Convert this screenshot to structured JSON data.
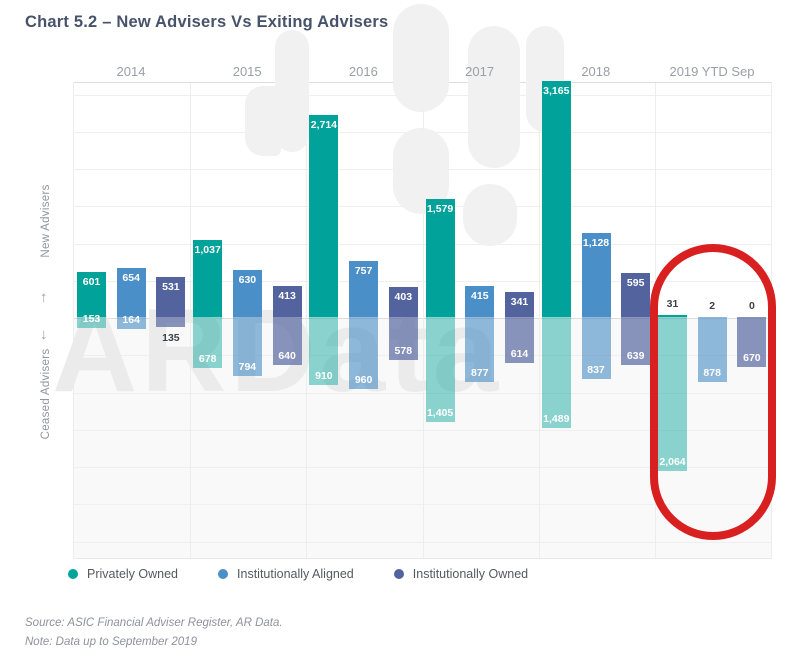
{
  "title": "Chart 5.2 – New Advisers Vs Exiting Advisers",
  "axis": {
    "new_label": "New Advisers",
    "ceased_label": "Ceased Advisers",
    "up_arrow": "↑",
    "down_arrow": "↓"
  },
  "legend": [
    {
      "label": "Privately Owned",
      "color": "#00a29a"
    },
    {
      "label": "Institutionally Aligned",
      "color": "#4a8fc7"
    },
    {
      "label": "Institutionally Owned",
      "color": "#53639e"
    }
  ],
  "watermark": {
    "text": "ARData"
  },
  "annotation": {
    "shape": "red-oval",
    "target": "2019 YTD Sep group",
    "color": "#d92020"
  },
  "footer": {
    "source": "Source: ASIC Financial Adviser Register, AR Data.",
    "note": "Note: Data up to September 2019"
  },
  "chart_data": {
    "type": "bar",
    "subtype": "diverging-grouped",
    "title": "Chart 5.2 – New Advisers Vs Exiting Advisers",
    "categories": [
      "2014",
      "2015",
      "2016",
      "2017",
      "2018",
      "2019 YTD Sep"
    ],
    "ylabel_up": "New Advisers",
    "ylabel_down": "Ceased Advisers",
    "grid": true,
    "legend_position": "bottom",
    "series": [
      {
        "name": "Privately Owned",
        "color": "#00a29a",
        "color_ceased": "rgba(0,162,154,0.45)",
        "new": [
          601,
          1037,
          2714,
          1579,
          3165,
          31
        ],
        "ceased": [
          153,
          678,
          910,
          1405,
          1489,
          2064
        ]
      },
      {
        "name": "Institutionally Aligned",
        "color": "#4a8fc7",
        "color_ceased": "rgba(74,143,199,0.62)",
        "new": [
          654,
          630,
          757,
          415,
          1128,
          2
        ],
        "ceased": [
          164,
          794,
          960,
          877,
          837,
          878
        ]
      },
      {
        "name": "Institutionally Owned",
        "color": "#53639e",
        "color_ceased": "rgba(83,99,158,0.68)",
        "new": [
          531,
          413,
          403,
          341,
          595,
          0
        ],
        "ceased": [
          135,
          640,
          578,
          614,
          639,
          670
        ]
      }
    ]
  }
}
